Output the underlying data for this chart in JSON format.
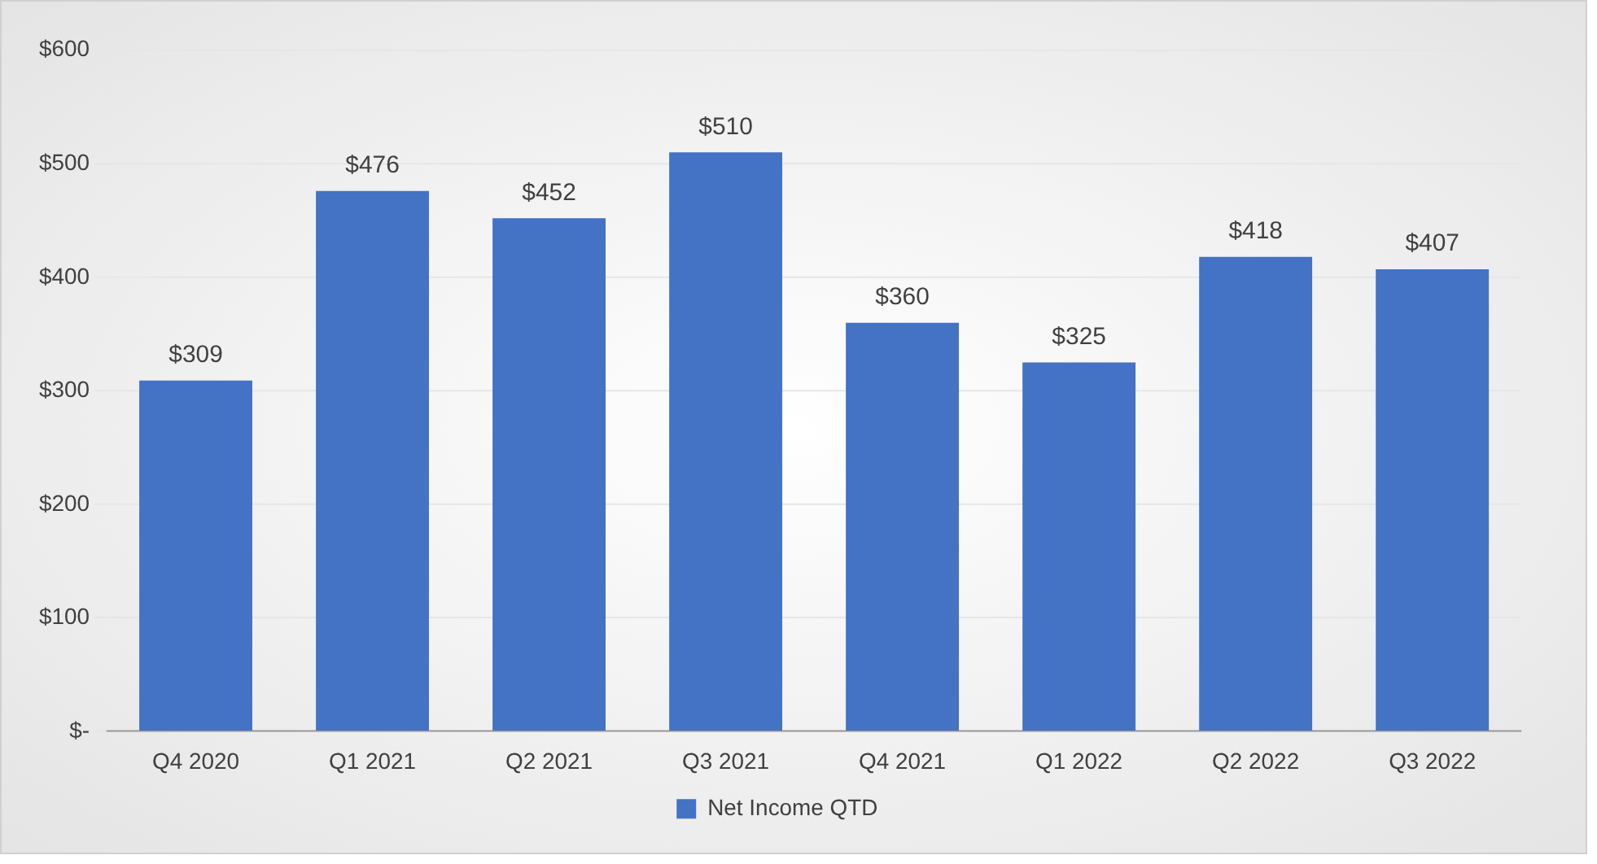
{
  "chart_data": {
    "type": "bar",
    "categories": [
      "Q4 2020",
      "Q1 2021",
      "Q2 2021",
      "Q3 2021",
      "Q4 2021",
      "Q1 2022",
      "Q2 2022",
      "Q3 2022"
    ],
    "series": [
      {
        "name": "Net Income QTD",
        "color": "#4472c4",
        "values": [
          309,
          476,
          452,
          510,
          360,
          325,
          418,
          407
        ],
        "value_labels": [
          "$309",
          "$476",
          "$452",
          "$510",
          "$360",
          "$325",
          "$418",
          "$407"
        ]
      }
    ],
    "ylim": [
      0,
      600
    ],
    "yticks": [
      {
        "value": 0,
        "label": "$-"
      },
      {
        "value": 100,
        "label": "$100"
      },
      {
        "value": 200,
        "label": "$200"
      },
      {
        "value": 300,
        "label": "$300"
      },
      {
        "value": 400,
        "label": "$400"
      },
      {
        "value": 500,
        "label": "$500"
      },
      {
        "value": 600,
        "label": "$600"
      }
    ],
    "grid": "y",
    "legend": "bottom"
  }
}
